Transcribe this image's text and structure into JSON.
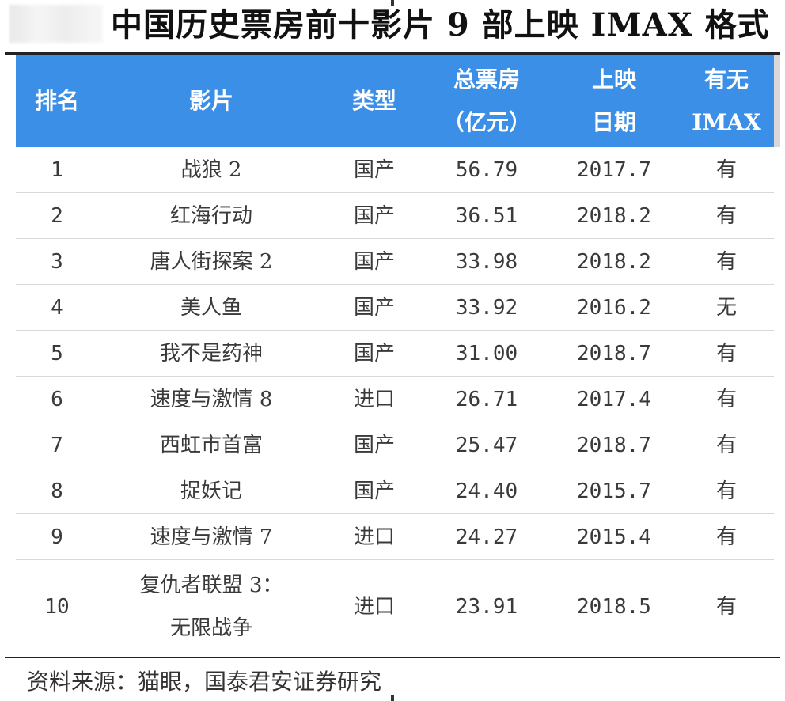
{
  "title": "中国历史票房前十影片 9 部上映 IMAX 格式",
  "table": {
    "headers": [
      {
        "lines": [
          "排名"
        ]
      },
      {
        "lines": [
          "影片"
        ]
      },
      {
        "lines": [
          "类型"
        ]
      },
      {
        "lines": [
          "总票房",
          "（亿元）"
        ]
      },
      {
        "lines": [
          "上映",
          "日期"
        ]
      },
      {
        "lines": [
          "有无",
          "IMAX"
        ]
      }
    ],
    "rows": [
      {
        "rank": "1",
        "film": [
          "战狼 2"
        ],
        "type": "国产",
        "box_office": "56.79",
        "release": "2017.7",
        "imax": "有"
      },
      {
        "rank": "2",
        "film": [
          "红海行动"
        ],
        "type": "国产",
        "box_office": "36.51",
        "release": "2018.2",
        "imax": "有"
      },
      {
        "rank": "3",
        "film": [
          "唐人街探案 2"
        ],
        "type": "国产",
        "box_office": "33.98",
        "release": "2018.2",
        "imax": "有"
      },
      {
        "rank": "4",
        "film": [
          "美人鱼"
        ],
        "type": "国产",
        "box_office": "33.92",
        "release": "2016.2",
        "imax": "无"
      },
      {
        "rank": "5",
        "film": [
          "我不是药神"
        ],
        "type": "国产",
        "box_office": "31.00",
        "release": "2018.7",
        "imax": "有"
      },
      {
        "rank": "6",
        "film": [
          "速度与激情 8"
        ],
        "type": "进口",
        "box_office": "26.71",
        "release": "2017.4",
        "imax": "有"
      },
      {
        "rank": "7",
        "film": [
          "西虹市首富"
        ],
        "type": "国产",
        "box_office": "25.47",
        "release": "2018.7",
        "imax": "有"
      },
      {
        "rank": "8",
        "film": [
          "捉妖记"
        ],
        "type": "国产",
        "box_office": "24.40",
        "release": "2015.7",
        "imax": "有"
      },
      {
        "rank": "9",
        "film": [
          "速度与激情 7"
        ],
        "type": "进口",
        "box_office": "24.27",
        "release": "2015.4",
        "imax": "有"
      },
      {
        "rank": "10",
        "film": [
          "复仇者联盟 3：",
          "无限战争"
        ],
        "type": "进口",
        "box_office": "23.91",
        "release": "2018.5",
        "imax": "有"
      }
    ]
  },
  "source": "资料来源：猫眼，国泰君安证券研究",
  "colors": {
    "header_bg": "#3c8fe6",
    "header_text": "#ffffff",
    "row_divider": "#d9d9d9",
    "rule": "#222222"
  }
}
